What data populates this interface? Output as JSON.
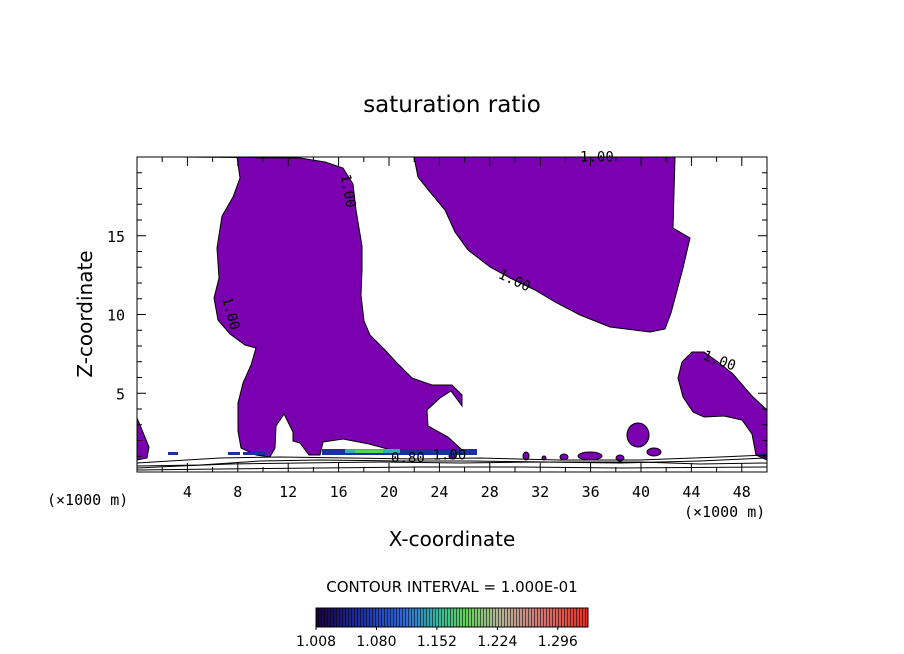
{
  "chart_data": {
    "type": "contour",
    "title": "saturation ratio",
    "xlabel": "X-coordinate",
    "ylabel": "Z-coordinate",
    "x_unit_left": "(×1000 m)",
    "x_unit_right": "(×1000 m)",
    "xlim": [
      0,
      50
    ],
    "ylim": [
      0,
      20
    ],
    "xticks": [
      4,
      8,
      12,
      16,
      20,
      24,
      28,
      32,
      36,
      40,
      44,
      48
    ],
    "yticks": [
      5,
      10,
      15
    ],
    "fill_color": "#7b00b0",
    "contour_labels": [
      {
        "text": "1.00",
        "x": 36.5,
        "y": 19.7,
        "rot": 0
      },
      {
        "text": "1.00",
        "x": 16.4,
        "y": 17.8,
        "rot": 80
      },
      {
        "text": "1.00",
        "x": 29.8,
        "y": 11.9,
        "rot": 25
      },
      {
        "text": "1.00",
        "x": 7.1,
        "y": 10.0,
        "rot": 75
      },
      {
        "text": "1.00",
        "x": 46.1,
        "y": 6.8,
        "rot": 20
      },
      {
        "text": "0.80",
        "x": 21.5,
        "y": 0.6,
        "rot": 0
      },
      {
        "text": "1.00",
        "x": 24.8,
        "y": 0.8,
        "rot": 0
      }
    ],
    "contour_interval_label": "CONTOUR INTERVAL = 1.000E-01",
    "colorbar": {
      "ticks": [
        "1.008",
        "1.080",
        "1.152",
        "1.224",
        "1.296"
      ],
      "min": 1.008,
      "max": 1.332
    }
  }
}
